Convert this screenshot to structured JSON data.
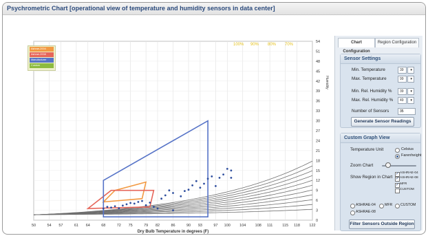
{
  "window": {
    "title": "Psychrometric Chart [operational view of temperature and humidity sensors in data center]"
  },
  "tabs": [
    {
      "label": "Chart Configuration",
      "active": true
    },
    {
      "label": "Region Configuration",
      "active": false
    }
  ],
  "sensor_settings": {
    "header": "Sensor Settings",
    "min_temp_label": "Min. Temperature",
    "min_temp_value": "39",
    "max_temp_label": "Max. Temperature",
    "max_temp_value": "99",
    "min_rh_label": "Min. Rel. Humidity %",
    "min_rh_value": "39",
    "max_rh_label": "Max. Rel. Humidity %",
    "max_rh_value": "49",
    "num_sensors_label": "Number of Sensors",
    "num_sensors_value": "35",
    "generate_button": "Generate Sensor Readings"
  },
  "custom_view": {
    "header": "Custom Graph View",
    "temp_unit_label": "Temperature Unit",
    "unit_celsius": "Celsius",
    "unit_fahrenheit": "Farenheight",
    "unit_selected": "Farenheight",
    "zoom_label": "Zoom Chart",
    "zoom_level": 0.1,
    "show_region_label": "Show Region in Chart",
    "regions": [
      {
        "label": "ASHRAE-04",
        "checked": true
      },
      {
        "label": "ASHRAE-08",
        "checked": true
      },
      {
        "label": "MFR",
        "checked": true
      },
      {
        "label": "CUSTOM",
        "checked": false
      }
    ],
    "radio_regions": [
      "ASHRAE-04",
      "MFR",
      "CUSTOM",
      "ASHRAE-08"
    ],
    "filter_button": "Filter Sensors Outside Region"
  },
  "legend": [
    {
      "label": "Ashrae-2004",
      "color": "#f29a43"
    },
    {
      "label": "Ashrae-2008",
      "color": "#e6665a"
    },
    {
      "label": "Manufacturer",
      "color": "#5673c7"
    },
    {
      "label": "Custom",
      "color": "#8dbb3f"
    }
  ],
  "chart_data": {
    "type": "scatter",
    "title": "",
    "xlabel": "Dry Bulb Temperature in degrees (F)",
    "ylabel": "Humidity",
    "x_ticks": [
      50,
      54,
      57,
      61,
      64,
      68,
      72,
      75,
      79,
      82,
      86,
      90,
      93,
      97,
      100,
      104,
      108,
      111,
      115,
      118,
      122
    ],
    "y_ticks": [
      0,
      3,
      6,
      9,
      12,
      15,
      18,
      21,
      24,
      27,
      30,
      33,
      36,
      39,
      42,
      45,
      48,
      51,
      54
    ],
    "xlim": [
      50,
      122
    ],
    "ylim": [
      0,
      54
    ],
    "rh_curve_labels": [
      "100%",
      "90%",
      "80%",
      "70%"
    ],
    "grid": true,
    "legend_position": "top-left",
    "regions": [
      {
        "name": "Ashrae-2004",
        "color": "#f29a43",
        "points": [
          [
            68,
            5.5
          ],
          [
            78,
            6.5
          ],
          [
            79,
            11.5
          ],
          [
            71,
            9
          ]
        ]
      },
      {
        "name": "Ashrae-2008",
        "color": "#e6665a",
        "points": [
          [
            64,
            3.5
          ],
          [
            80,
            4
          ],
          [
            81,
            9
          ],
          [
            70,
            9
          ]
        ]
      },
      {
        "name": "Manufacturer",
        "color": "#5673c7",
        "points": [
          [
            68,
            1
          ],
          [
            95,
            1
          ],
          [
            95,
            30
          ],
          [
            68,
            12
          ]
        ]
      }
    ],
    "series": [
      {
        "name": "Sensors",
        "color": "#2e4e9e",
        "points": [
          [
            68,
            3.5
          ],
          [
            69,
            4
          ],
          [
            70,
            3.8
          ],
          [
            71,
            4.2
          ],
          [
            72,
            3.6
          ],
          [
            73,
            4.4
          ],
          [
            74,
            4.8
          ],
          [
            75,
            5.2
          ],
          [
            76,
            5
          ],
          [
            77,
            5.5
          ],
          [
            78,
            5.8
          ],
          [
            79,
            4.5
          ],
          [
            80,
            5.3
          ],
          [
            81,
            4
          ],
          [
            83,
            6.5
          ],
          [
            84,
            7.5
          ],
          [
            85,
            9
          ],
          [
            86,
            8.2
          ],
          [
            88,
            7.2
          ],
          [
            89,
            8.8
          ],
          [
            90,
            9.2
          ],
          [
            91,
            10.5
          ],
          [
            92,
            11.8
          ],
          [
            93,
            9.8
          ],
          [
            94,
            11
          ],
          [
            95,
            12.5
          ],
          [
            96,
            13.2
          ],
          [
            97,
            10.3
          ],
          [
            98,
            12.8
          ],
          [
            99,
            13.8
          ],
          [
            100,
            15.5
          ],
          [
            101,
            15
          ],
          [
            101,
            12.8
          ],
          [
            82,
            3.5
          ],
          [
            86,
            3
          ]
        ]
      }
    ]
  }
}
